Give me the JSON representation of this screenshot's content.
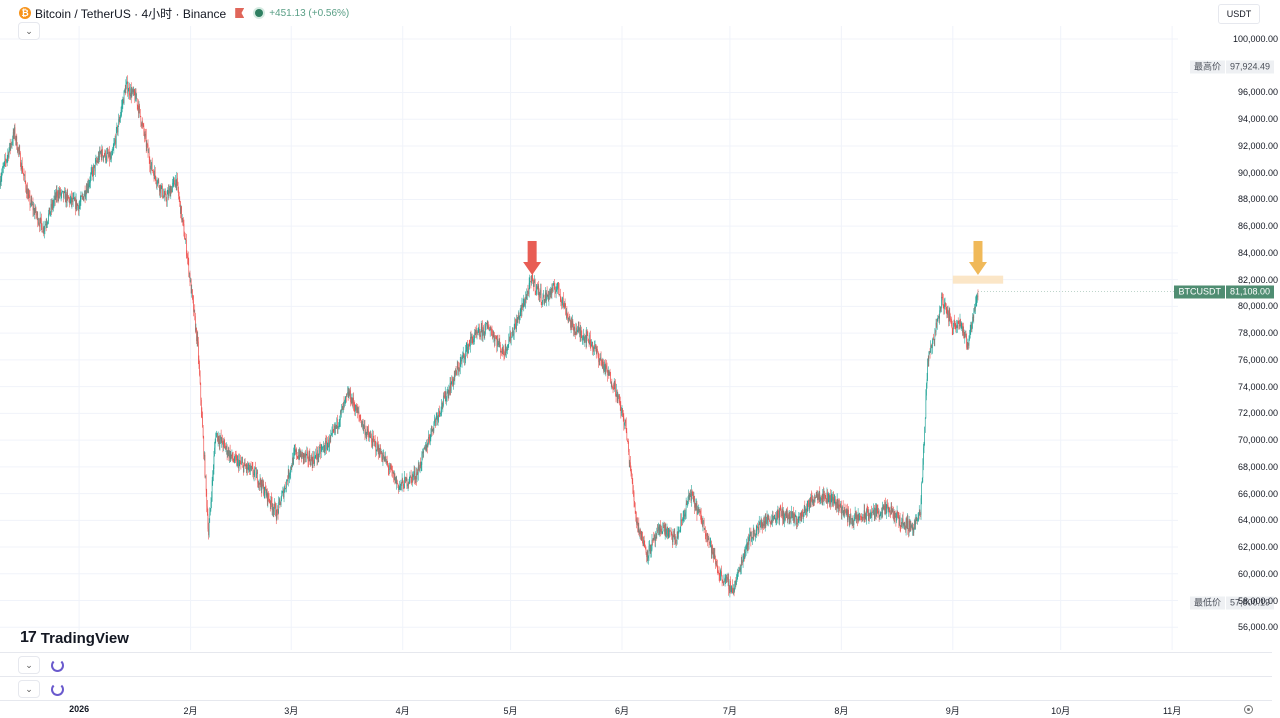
{
  "header": {
    "coin_glyph": "₿",
    "title": "Bitcoin / TetherUS · 4小时 · Binance",
    "change": "+451.13 (+0.56%)",
    "currency": "USDT",
    "icons": {
      "coin": "bitcoin-icon",
      "flag": "flag-icon",
      "status": "market-open-icon"
    },
    "colors": {
      "coin": "#f7931a",
      "flag": "#e0665a",
      "up": "#26a69a",
      "down": "#ef5350"
    }
  },
  "axis_tags": {
    "high": {
      "label": "最高价",
      "value": "97,924.49",
      "price": 97924.49
    },
    "current": {
      "label": "BTCUSDT",
      "value": "81,108.00",
      "price": 81108.0
    },
    "low": {
      "label": "最低价",
      "value": "57,800.19",
      "price": 57800.19
    }
  },
  "logo": {
    "text": "TradingView",
    "mark": "17"
  },
  "chart_data": {
    "type": "candlestick",
    "title": "Bitcoin / TetherUS · 4小时 · Binance",
    "xlabel": "",
    "ylabel": "",
    "ylim": [
      55000,
      101000
    ],
    "y_ticks": [
      "56,000.00",
      "58,000.00",
      "60,000.00",
      "62,000.00",
      "64,000.00",
      "66,000.00",
      "68,000.00",
      "70,000.00",
      "72,000.00",
      "74,000.00",
      "76,000.00",
      "78,000.00",
      "80,000.00",
      "82,000.00",
      "84,000.00",
      "86,000.00",
      "88,000.00",
      "90,000.00",
      "92,000.00",
      "94,000.00",
      "96,000.00",
      "100,000.00"
    ],
    "y_tick_values": [
      56000,
      58000,
      60000,
      62000,
      64000,
      66000,
      68000,
      70000,
      72000,
      74000,
      76000,
      78000,
      80000,
      82000,
      84000,
      86000,
      88000,
      90000,
      92000,
      94000,
      96000,
      100000
    ],
    "x_ticks": [
      "2026",
      "2月",
      "3月",
      "4月",
      "5月",
      "6月",
      "7月",
      "8月",
      "9月",
      "10月",
      "11月"
    ],
    "x_tick_dates": [
      "2026-01-01",
      "2026-02-01",
      "2026-03-01",
      "2026-04-01",
      "2026-05-01",
      "2026-06-01",
      "2026-07-01",
      "2026-08-01",
      "2026-09-01",
      "2026-10-01",
      "2026-11-01"
    ],
    "x_range": [
      "2025-12-10",
      "2026-12-01"
    ],
    "grid": true,
    "legend": "none",
    "price_path": [
      {
        "date": "2025-12-10",
        "price": 89500
      },
      {
        "date": "2025-12-14",
        "price": 93000
      },
      {
        "date": "2025-12-18",
        "price": 88000
      },
      {
        "date": "2025-12-22",
        "price": 85800
      },
      {
        "date": "2025-12-26",
        "price": 88500
      },
      {
        "date": "2026-01-01",
        "price": 87500
      },
      {
        "date": "2026-01-07",
        "price": 91500
      },
      {
        "date": "2026-01-10",
        "price": 91000
      },
      {
        "date": "2026-01-14",
        "price": 96500
      },
      {
        "date": "2026-01-17",
        "price": 95500
      },
      {
        "date": "2026-01-21",
        "price": 90500
      },
      {
        "date": "2026-01-25",
        "price": 88000
      },
      {
        "date": "2026-01-28",
        "price": 89500
      },
      {
        "date": "2026-01-31",
        "price": 84000
      },
      {
        "date": "2026-02-03",
        "price": 77000
      },
      {
        "date": "2026-02-06",
        "price": 63000
      },
      {
        "date": "2026-02-08",
        "price": 70500
      },
      {
        "date": "2026-02-13",
        "price": 68500
      },
      {
        "date": "2026-02-19",
        "price": 67500
      },
      {
        "date": "2026-02-25",
        "price": 64500
      },
      {
        "date": "2026-03-02",
        "price": 69000
      },
      {
        "date": "2026-03-07",
        "price": 68500
      },
      {
        "date": "2026-03-12",
        "price": 70000
      },
      {
        "date": "2026-03-17",
        "price": 73500
      },
      {
        "date": "2026-03-22",
        "price": 70500
      },
      {
        "date": "2026-03-26",
        "price": 69000
      },
      {
        "date": "2026-03-31",
        "price": 66500
      },
      {
        "date": "2026-04-05",
        "price": 67500
      },
      {
        "date": "2026-04-10",
        "price": 71500
      },
      {
        "date": "2026-04-15",
        "price": 74500
      },
      {
        "date": "2026-04-20",
        "price": 77500
      },
      {
        "date": "2026-04-25",
        "price": 78500
      },
      {
        "date": "2026-04-29",
        "price": 76500
      },
      {
        "date": "2026-05-03",
        "price": 79000
      },
      {
        "date": "2026-05-07",
        "price": 82000
      },
      {
        "date": "2026-05-10",
        "price": 80500
      },
      {
        "date": "2026-05-14",
        "price": 81500
      },
      {
        "date": "2026-05-18",
        "price": 78500
      },
      {
        "date": "2026-05-23",
        "price": 77500
      },
      {
        "date": "2026-05-27",
        "price": 75500
      },
      {
        "date": "2026-05-30",
        "price": 74000
      },
      {
        "date": "2026-06-02",
        "price": 71000
      },
      {
        "date": "2026-06-05",
        "price": 64000
      },
      {
        "date": "2026-06-08",
        "price": 61500
      },
      {
        "date": "2026-06-12",
        "price": 63500
      },
      {
        "date": "2026-06-16",
        "price": 62500
      },
      {
        "date": "2026-06-20",
        "price": 66000
      },
      {
        "date": "2026-06-24",
        "price": 63500
      },
      {
        "date": "2026-06-28",
        "price": 60000
      },
      {
        "date": "2026-07-02",
        "price": 58800
      },
      {
        "date": "2026-07-06",
        "price": 62500
      },
      {
        "date": "2026-07-10",
        "price": 63800
      },
      {
        "date": "2026-07-15",
        "price": 64500
      },
      {
        "date": "2026-07-20",
        "price": 64000
      },
      {
        "date": "2026-07-25",
        "price": 66000
      },
      {
        "date": "2026-07-30",
        "price": 65500
      },
      {
        "date": "2026-08-04",
        "price": 64000
      },
      {
        "date": "2026-08-09",
        "price": 64500
      },
      {
        "date": "2026-08-14",
        "price": 64800
      },
      {
        "date": "2026-08-18",
        "price": 63800
      },
      {
        "date": "2026-08-21",
        "price": 63500
      },
      {
        "date": "2026-08-23",
        "price": 64500
      },
      {
        "date": "2026-08-24",
        "price": 70000
      },
      {
        "date": "2026-08-25",
        "price": 76000
      },
      {
        "date": "2026-08-27",
        "price": 78000
      },
      {
        "date": "2026-08-29",
        "price": 80500
      },
      {
        "date": "2026-09-01",
        "price": 78500
      },
      {
        "date": "2026-09-03",
        "price": 79000
      },
      {
        "date": "2026-09-05",
        "price": 77000
      },
      {
        "date": "2026-09-06",
        "price": 78500
      },
      {
        "date": "2026-09-08",
        "price": 81108
      }
    ],
    "annotations": [
      {
        "type": "arrow-down",
        "date": "2026-05-07",
        "price": 82200,
        "color": "#e85d54"
      },
      {
        "type": "arrow-down",
        "date": "2026-09-08",
        "price": 82200,
        "color": "#f0b959"
      },
      {
        "type": "zone",
        "date_start": "2026-09-01",
        "date_end": "2026-09-15",
        "price_low": 81700,
        "price_high": 82300,
        "color": "#fbe3c1"
      }
    ]
  }
}
